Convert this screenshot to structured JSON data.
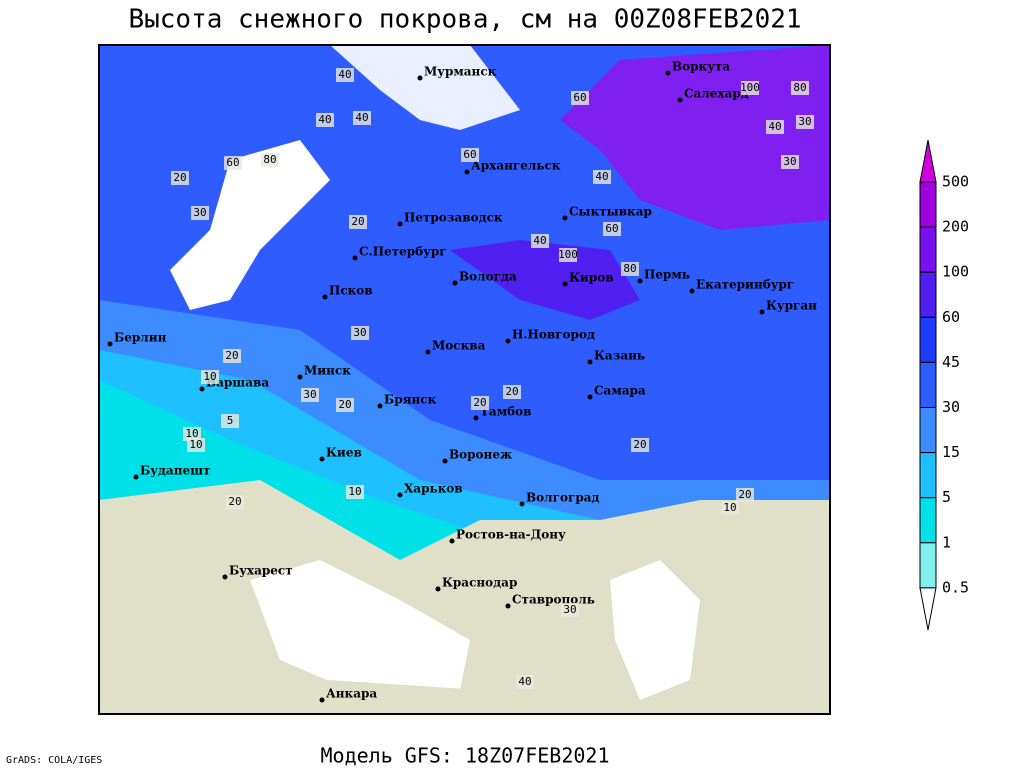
{
  "title": "Высота снежного покрова, см на 00Z08FEB2021",
  "footer": {
    "model": "Модель GFS: 18Z07FEB2021",
    "credit": "GrADS: COLA/IGES"
  },
  "legend": {
    "levels": [
      500,
      200,
      100,
      60,
      45,
      30,
      15,
      5,
      1,
      0.5
    ]
  },
  "cities": [
    "Мурманск",
    "Воркута",
    "Салехард",
    "Архангельск",
    "Петрозаводск",
    "Сыктывкар",
    "С.Петербург",
    "Вологда",
    "Киров",
    "Пермь",
    "Екатеринбург",
    "Псков",
    "Курган",
    "Берлин",
    "Н.Новгород",
    "Москва",
    "Казань",
    "Минск",
    "Варшава",
    "Брянск",
    "Тамбов",
    "Самара",
    "Киев",
    "Воронеж",
    "Будапешт",
    "Харьков",
    "Волгоград",
    "Ростов-на-Дону",
    "Бухарест",
    "Краснодар",
    "Ставрополь",
    "Анкара"
  ],
  "contour_labels": [
    40,
    100,
    80,
    60,
    40,
    30,
    60,
    80,
    20,
    30,
    40,
    40,
    60,
    40,
    60,
    40,
    100,
    80,
    30,
    20,
    30,
    20,
    20,
    10,
    30,
    20,
    20,
    10,
    10,
    5,
    20,
    10,
    20,
    10,
    20,
    30,
    40
  ]
}
